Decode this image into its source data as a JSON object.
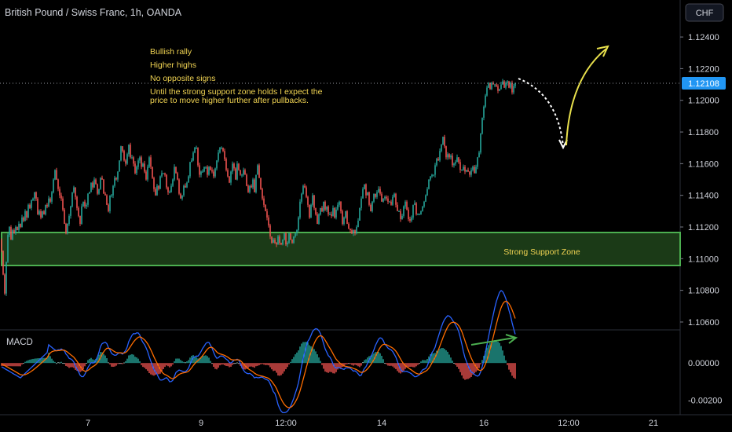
{
  "header": {
    "title": "British Pound / Swiss Franc, 1h, OANDA",
    "currency_button": "CHF"
  },
  "annotations": {
    "lines": [
      "Bullish rally",
      "Higher highs",
      "No opposite signs",
      "Until the strong support zone holds I expect the",
      "price to move higher further after pullbacks."
    ],
    "support_label": "Strong Support Zone"
  },
  "colors": {
    "up": "#26a69a",
    "down": "#ef5350",
    "zone_fill": "#1b3a17",
    "zone_border": "#4caf50",
    "annotation": "#f0d352",
    "macd_line": "#2962ff",
    "signal_line": "#ff6d00",
    "price_tag": "#2196f3"
  },
  "chart_data": [
    {
      "type": "candlestick",
      "title": "British Pound / Swiss Franc, 1h, OANDA",
      "y_ticks": [
        "1.12400",
        "1.12200",
        "1.12000",
        "1.11800",
        "1.11600",
        "1.11400",
        "1.11200",
        "1.11000",
        "1.10800",
        "1.10600"
      ],
      "ylim": [
        1.1058,
        1.1246
      ],
      "last_price": "1.12108",
      "x_ticks": [
        "7",
        "9",
        "12:00",
        "14",
        "16",
        "12:00",
        "21"
      ],
      "support_zone": {
        "low": 1.1095,
        "high": 1.1115,
        "label": "Strong Support Zone"
      },
      "candles_from": {
        "date": "6",
        "close": 1.1105,
        "bars": 328
      },
      "path_closes": [
        [
          0,
          1.1105
        ],
        [
          1,
          1.109
        ],
        [
          2,
          1.1078
        ],
        [
          3,
          1.1098
        ],
        [
          4,
          1.1115
        ],
        [
          5,
          1.112
        ],
        [
          6,
          1.1112
        ],
        [
          7,
          1.1118
        ],
        [
          8,
          1.1116
        ],
        [
          9,
          1.112
        ],
        [
          10,
          1.1118
        ],
        [
          11,
          1.1122
        ],
        [
          12,
          1.112
        ],
        [
          13,
          1.1126
        ],
        [
          14,
          1.1124
        ],
        [
          15,
          1.113
        ],
        [
          16,
          1.1126
        ],
        [
          17,
          1.1134
        ],
        [
          18,
          1.1132
        ],
        [
          19,
          1.1137
        ],
        [
          20,
          1.1138
        ],
        [
          21,
          1.1142
        ],
        [
          22,
          1.1138
        ],
        [
          23,
          1.1128
        ],
        [
          24,
          1.113
        ],
        [
          25,
          1.1126
        ],
        [
          26,
          1.113
        ],
        [
          27,
          1.1128
        ],
        [
          28,
          1.1134
        ],
        [
          29,
          1.1133
        ],
        [
          30,
          1.1138
        ],
        [
          31,
          1.1136
        ],
        [
          32,
          1.1142
        ],
        [
          33,
          1.115
        ],
        [
          34,
          1.1156
        ],
        [
          35,
          1.115
        ],
        [
          36,
          1.1144
        ],
        [
          37,
          1.114
        ],
        [
          38,
          1.1138
        ],
        [
          39,
          1.1131
        ],
        [
          40,
          1.1122
        ],
        [
          41,
          1.1116
        ],
        [
          42,
          1.1122
        ],
        [
          43,
          1.1127
        ],
        [
          44,
          1.1133
        ],
        [
          45,
          1.1142
        ],
        [
          46,
          1.1145
        ],
        [
          47,
          1.1139
        ],
        [
          48,
          1.1132
        ],
        [
          49,
          1.1127
        ],
        [
          50,
          1.1122
        ],
        [
          51,
          1.1133
        ],
        [
          52,
          1.1136
        ],
        [
          53,
          1.1133
        ],
        [
          54,
          1.1134
        ],
        [
          55,
          1.1141
        ],
        [
          56,
          1.1142
        ],
        [
          57,
          1.1148
        ],
        [
          58,
          1.1145
        ],
        [
          59,
          1.115
        ],
        [
          60,
          1.1147
        ],
        [
          61,
          1.1141
        ],
        [
          62,
          1.1144
        ],
        [
          63,
          1.1151
        ],
        [
          64,
          1.115
        ],
        [
          65,
          1.1141
        ],
        [
          66,
          1.114
        ],
        [
          67,
          1.1134
        ],
        [
          68,
          1.113
        ],
        [
          69,
          1.114
        ],
        [
          70,
          1.114
        ],
        [
          71,
          1.1146
        ],
        [
          72,
          1.1151
        ],
        [
          73,
          1.115
        ],
        [
          74,
          1.1155
        ],
        [
          75,
          1.1162
        ],
        [
          76,
          1.1171
        ],
        [
          77,
          1.1168
        ],
        [
          78,
          1.1162
        ],
        [
          79,
          1.116
        ],
        [
          80,
          1.1166
        ],
        [
          81,
          1.1172
        ],
        [
          82,
          1.1164
        ],
        [
          83,
          1.1164
        ],
        [
          84,
          1.116
        ],
        [
          85,
          1.1154
        ],
        [
          86,
          1.1158
        ],
        [
          87,
          1.1162
        ],
        [
          88,
          1.1164
        ],
        [
          89,
          1.1158
        ],
        [
          90,
          1.116
        ],
        [
          91,
          1.1155
        ],
        [
          92,
          1.115
        ],
        [
          93,
          1.1158
        ],
        [
          94,
          1.1164
        ],
        [
          95,
          1.1158
        ],
        [
          96,
          1.1151
        ],
        [
          97,
          1.1144
        ],
        [
          98,
          1.114
        ],
        [
          99,
          1.1146
        ],
        [
          100,
          1.1144
        ],
        [
          101,
          1.1152
        ],
        [
          102,
          1.1154
        ],
        [
          103,
          1.1154
        ],
        [
          104,
          1.1153
        ],
        [
          105,
          1.1145
        ],
        [
          106,
          1.1142
        ],
        [
          107,
          1.1142
        ],
        [
          108,
          1.1146
        ],
        [
          109,
          1.115
        ],
        [
          110,
          1.1158
        ],
        [
          111,
          1.1154
        ],
        [
          112,
          1.115
        ],
        [
          113,
          1.1141
        ],
        [
          114,
          1.1138
        ],
        [
          115,
          1.114
        ],
        [
          116,
          1.1146
        ],
        [
          117,
          1.1145
        ],
        [
          118,
          1.1148
        ],
        [
          119,
          1.1152
        ],
        [
          120,
          1.1161
        ],
        [
          121,
          1.1162
        ],
        [
          122,
          1.1167
        ],
        [
          123,
          1.117
        ],
        [
          124,
          1.117
        ],
        [
          125,
          1.1159
        ],
        [
          126,
          1.1153
        ],
        [
          127,
          1.1155
        ],
        [
          128,
          1.1155
        ],
        [
          129,
          1.1158
        ],
        [
          130,
          1.1158
        ],
        [
          131,
          1.1153
        ],
        [
          132,
          1.1158
        ],
        [
          133,
          1.1156
        ],
        [
          134,
          1.1155
        ],
        [
          135,
          1.1152
        ],
        [
          136,
          1.1157
        ],
        [
          137,
          1.1162
        ],
        [
          138,
          1.1167
        ],
        [
          139,
          1.117
        ],
        [
          140,
          1.117
        ],
        [
          141,
          1.1168
        ],
        [
          142,
          1.1163
        ],
        [
          143,
          1.1156
        ],
        [
          144,
          1.1152
        ],
        [
          145,
          1.1148
        ],
        [
          146,
          1.1155
        ],
        [
          147,
          1.116
        ],
        [
          148,
          1.1157
        ],
        [
          149,
          1.115
        ],
        [
          150,
          1.116
        ],
        [
          151,
          1.1156
        ],
        [
          152,
          1.1153
        ],
        [
          153,
          1.1153
        ],
        [
          154,
          1.1156
        ],
        [
          155,
          1.1153
        ],
        [
          156,
          1.1146
        ],
        [
          157,
          1.1142
        ],
        [
          158,
          1.1146
        ],
        [
          159,
          1.1145
        ],
        [
          160,
          1.115
        ],
        [
          161,
          1.1142
        ],
        [
          162,
          1.1153
        ],
        [
          163,
          1.1159
        ],
        [
          164,
          1.1151
        ],
        [
          165,
          1.1144
        ],
        [
          166,
          1.1138
        ],
        [
          167,
          1.1134
        ],
        [
          168,
          1.113
        ],
        [
          169,
          1.1126
        ],
        [
          170,
          1.1121
        ],
        [
          171,
          1.1114
        ],
        [
          172,
          1.111
        ],
        [
          173,
          1.1112
        ],
        [
          174,
          1.111
        ],
        [
          175,
          1.1109
        ],
        [
          176,
          1.1114
        ],
        [
          177,
          1.111
        ],
        [
          178,
          1.1109
        ],
        [
          179,
          1.1112
        ],
        [
          180,
          1.1116
        ],
        [
          181,
          1.1109
        ],
        [
          182,
          1.111
        ],
        [
          183,
          1.1116
        ],
        [
          184,
          1.1112
        ],
        [
          185,
          1.111
        ],
        [
          186,
          1.1114
        ],
        [
          187,
          1.1116
        ],
        [
          188,
          1.1118
        ],
        [
          189,
          1.1126
        ],
        [
          190,
          1.1136
        ],
        [
          191,
          1.1141
        ],
        [
          192,
          1.1146
        ],
        [
          193,
          1.1145
        ],
        [
          194,
          1.1139
        ],
        [
          195,
          1.1134
        ],
        [
          196,
          1.1126
        ],
        [
          197,
          1.1134
        ],
        [
          198,
          1.114
        ],
        [
          199,
          1.1132
        ],
        [
          200,
          1.1128
        ],
        [
          201,
          1.1122
        ],
        [
          202,
          1.1128
        ],
        [
          203,
          1.1132
        ],
        [
          204,
          1.113
        ],
        [
          205,
          1.1136
        ],
        [
          206,
          1.1131
        ],
        [
          207,
          1.1133
        ],
        [
          208,
          1.1128
        ],
        [
          209,
          1.1128
        ],
        [
          210,
          1.1127
        ],
        [
          211,
          1.1132
        ],
        [
          212,
          1.1126
        ],
        [
          213,
          1.1131
        ],
        [
          214,
          1.1134
        ],
        [
          215,
          1.1136
        ],
        [
          216,
          1.113
        ],
        [
          217,
          1.1122
        ],
        [
          218,
          1.1126
        ],
        [
          219,
          1.113
        ],
        [
          220,
          1.1122
        ],
        [
          221,
          1.1119
        ],
        [
          222,
          1.1118
        ],
        [
          223,
          1.1116
        ],
        [
          224,
          1.1118
        ],
        [
          225,
          1.1116
        ],
        [
          226,
          1.112
        ],
        [
          227,
          1.1124
        ],
        [
          228,
          1.1132
        ],
        [
          229,
          1.1138
        ],
        [
          230,
          1.1144
        ],
        [
          231,
          1.1147
        ],
        [
          232,
          1.114
        ],
        [
          233,
          1.1142
        ],
        [
          234,
          1.1134
        ],
        [
          235,
          1.113
        ],
        [
          236,
          1.1136
        ],
        [
          237,
          1.1141
        ],
        [
          238,
          1.1139
        ],
        [
          239,
          1.1142
        ],
        [
          240,
          1.1144
        ],
        [
          241,
          1.1141
        ],
        [
          242,
          1.1136
        ],
        [
          243,
          1.1138
        ],
        [
          244,
          1.1139
        ],
        [
          245,
          1.1138
        ],
        [
          246,
          1.1136
        ],
        [
          247,
          1.1136
        ],
        [
          248,
          1.1134
        ],
        [
          249,
          1.1139
        ],
        [
          250,
          1.1141
        ],
        [
          251,
          1.1134
        ],
        [
          252,
          1.113
        ],
        [
          253,
          1.113
        ],
        [
          254,
          1.1125
        ],
        [
          255,
          1.1127
        ],
        [
          256,
          1.1133
        ],
        [
          257,
          1.1136
        ],
        [
          258,
          1.1131
        ],
        [
          259,
          1.1125
        ],
        [
          260,
          1.1124
        ],
        [
          261,
          1.1126
        ],
        [
          262,
          1.1134
        ],
        [
          263,
          1.1135
        ],
        [
          264,
          1.1128
        ],
        [
          265,
          1.1128
        ],
        [
          266,
          1.1128
        ],
        [
          267,
          1.113
        ],
        [
          268,
          1.1133
        ],
        [
          269,
          1.1136
        ],
        [
          270,
          1.114
        ],
        [
          271,
          1.1144
        ],
        [
          272,
          1.115
        ],
        [
          273,
          1.1152
        ],
        [
          274,
          1.1153
        ],
        [
          275,
          1.1153
        ],
        [
          276,
          1.1159
        ],
        [
          277,
          1.1163
        ],
        [
          278,
          1.1162
        ],
        [
          279,
          1.1168
        ],
        [
          280,
          1.1172
        ],
        [
          281,
          1.1177
        ],
        [
          282,
          1.1171
        ],
        [
          283,
          1.1164
        ],
        [
          284,
          1.1166
        ],
        [
          285,
          1.1164
        ],
        [
          286,
          1.1165
        ],
        [
          287,
          1.1159
        ],
        [
          288,
          1.116
        ],
        [
          289,
          1.1161
        ],
        [
          290,
          1.1164
        ],
        [
          291,
          1.1161
        ],
        [
          292,
          1.1156
        ],
        [
          293,
          1.1156
        ],
        [
          294,
          1.1158
        ],
        [
          295,
          1.1155
        ],
        [
          296,
          1.1156
        ],
        [
          297,
          1.1155
        ],
        [
          298,
          1.1153
        ],
        [
          299,
          1.1156
        ],
        [
          300,
          1.1158
        ],
        [
          301,
          1.1154
        ],
        [
          302,
          1.1158
        ],
        [
          303,
          1.1164
        ],
        [
          304,
          1.1167
        ],
        [
          305,
          1.1179
        ],
        [
          306,
          1.1189
        ],
        [
          307,
          1.1196
        ],
        [
          308,
          1.1203
        ],
        [
          309,
          1.1208
        ],
        [
          310,
          1.1211
        ],
        [
          311,
          1.1207
        ],
        [
          312,
          1.1211
        ],
        [
          313,
          1.121
        ],
        [
          314,
          1.121
        ],
        [
          315,
          1.1209
        ],
        [
          316,
          1.1206
        ],
        [
          317,
          1.1207
        ],
        [
          318,
          1.121
        ],
        [
          319,
          1.1212
        ],
        [
          320,
          1.1208
        ],
        [
          321,
          1.1211
        ],
        [
          322,
          1.1212
        ],
        [
          323,
          1.1208
        ],
        [
          324,
          1.1211
        ],
        [
          325,
          1.1205
        ],
        [
          326,
          1.1209
        ],
        [
          327,
          1.1211
        ]
      ]
    },
    {
      "type": "histogram",
      "title": "MACD",
      "y_ticks": [
        "0.00000",
        "-0.00200"
      ],
      "ylim": [
        -0.0027,
        0.0017
      ]
    }
  ]
}
